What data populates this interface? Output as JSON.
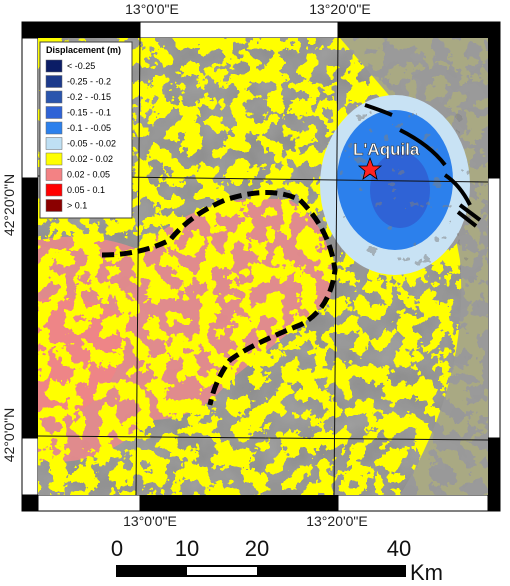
{
  "map": {
    "top_labels": [
      "13°0'0\"E",
      "13°20'0\"E"
    ],
    "bottom_labels": [
      "13°0'0\"E",
      "13°20'0\"E"
    ],
    "left_labels": [
      "42°20'0\"N",
      "42°0'0\"N"
    ],
    "legend": {
      "title": "Displacement (m)",
      "items": [
        {
          "label": "< -0.25",
          "color": "#0b1d66"
        },
        {
          "label": "-0.25 - -0.2",
          "color": "#1c3a8c"
        },
        {
          "label": "-0.2 - -0.15",
          "color": "#2a55ad"
        },
        {
          "label": "-0.15 - -0.1",
          "color": "#2f63d6"
        },
        {
          "label": "-0.1 - -0.05",
          "color": "#2c80ec"
        },
        {
          "label": "-0.05 - -0.02",
          "color": "#bfe0f4"
        },
        {
          "label": "-0.02 - 0.02",
          "color": "#ffff00"
        },
        {
          "label": "0.02 - 0.05",
          "color": "#f38284"
        },
        {
          "label": "0.05 - 0.1",
          "color": "#ff0000"
        },
        {
          "label": "> 0.1",
          "color": "#8b0000"
        }
      ]
    },
    "place_label": "L'Aquila",
    "scale_bar": {
      "labels": [
        "0",
        "10",
        "20",
        "40"
      ],
      "unit": "Km"
    }
  }
}
